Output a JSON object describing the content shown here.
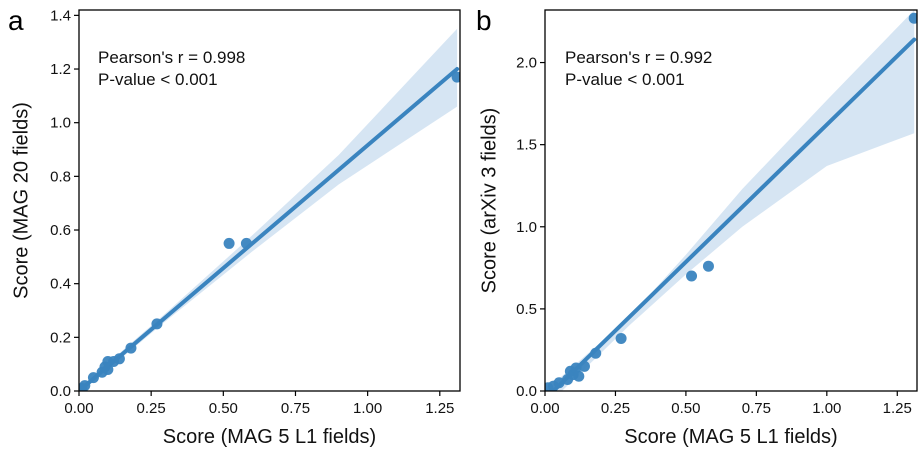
{
  "colors": {
    "line": "#3a84bf",
    "points": "#3a84bf",
    "band": "#cfe0f1",
    "axis": "#000000"
  },
  "chart_data": [
    {
      "panel_label": "a",
      "type": "scatter",
      "xlabel": "Score (MAG 5 L1 fields)",
      "ylabel": "Score (MAG 20 fields)",
      "xlim": [
        0.0,
        1.32
      ],
      "ylim": [
        0.0,
        1.42
      ],
      "xticks": [
        0.0,
        0.25,
        0.5,
        0.75,
        1.0,
        1.25
      ],
      "xtick_labels": [
        "0.00",
        "0.25",
        "0.50",
        "0.75",
        "1.00",
        "1.25"
      ],
      "yticks": [
        0.0,
        0.2,
        0.4,
        0.6,
        0.8,
        1.0,
        1.2,
        1.4
      ],
      "ytick_labels": [
        "0.0",
        "0.2",
        "0.4",
        "0.6",
        "0.8",
        "1.0",
        "1.2",
        "1.4"
      ],
      "annotation": {
        "line1": "Pearson's r = 0.998",
        "line2": "P-value < 0.001"
      },
      "points": [
        {
          "x": 0.01,
          "y": 0.01
        },
        {
          "x": 0.02,
          "y": 0.02
        },
        {
          "x": 0.05,
          "y": 0.05
        },
        {
          "x": 0.08,
          "y": 0.07
        },
        {
          "x": 0.09,
          "y": 0.09
        },
        {
          "x": 0.1,
          "y": 0.08
        },
        {
          "x": 0.1,
          "y": 0.11
        },
        {
          "x": 0.12,
          "y": 0.11
        },
        {
          "x": 0.14,
          "y": 0.12
        },
        {
          "x": 0.18,
          "y": 0.16
        },
        {
          "x": 0.27,
          "y": 0.25
        },
        {
          "x": 0.52,
          "y": 0.55
        },
        {
          "x": 0.58,
          "y": 0.55
        },
        {
          "x": 1.31,
          "y": 1.17
        }
      ],
      "regression": {
        "x": [
          0.0,
          1.31
        ],
        "y": [
          0.0,
          1.2
        ]
      },
      "ci_band": {
        "x": [
          0.0,
          0.3,
          0.6,
          0.9,
          1.31
        ],
        "upper": [
          0.01,
          0.29,
          0.58,
          0.88,
          1.35
        ],
        "lower": [
          -0.01,
          0.26,
          0.52,
          0.77,
          1.06
        ]
      }
    },
    {
      "panel_label": "b",
      "type": "scatter",
      "xlabel": "Score (MAG 5 L1 fields)",
      "ylabel": "Score (arXiv 3 fields)",
      "xlim": [
        0.0,
        1.32
      ],
      "ylim": [
        0.0,
        2.32
      ],
      "xticks": [
        0.0,
        0.25,
        0.5,
        0.75,
        1.0,
        1.25
      ],
      "xtick_labels": [
        "0.00",
        "0.25",
        "0.50",
        "0.75",
        "1.00",
        "1.25"
      ],
      "yticks": [
        0.0,
        0.5,
        1.0,
        1.5,
        2.0
      ],
      "ytick_labels": [
        "0.0",
        "0.5",
        "1.0",
        "1.5",
        "2.0"
      ],
      "annotation": {
        "line1": "Pearson's r = 0.992",
        "line2": "P-value < 0.001"
      },
      "points": [
        {
          "x": 0.01,
          "y": 0.02
        },
        {
          "x": 0.03,
          "y": 0.03
        },
        {
          "x": 0.05,
          "y": 0.05
        },
        {
          "x": 0.08,
          "y": 0.07
        },
        {
          "x": 0.09,
          "y": 0.12
        },
        {
          "x": 0.1,
          "y": 0.1
        },
        {
          "x": 0.11,
          "y": 0.14
        },
        {
          "x": 0.12,
          "y": 0.09
        },
        {
          "x": 0.14,
          "y": 0.15
        },
        {
          "x": 0.18,
          "y": 0.23
        },
        {
          "x": 0.27,
          "y": 0.32
        },
        {
          "x": 0.52,
          "y": 0.7
        },
        {
          "x": 0.58,
          "y": 0.76
        },
        {
          "x": 1.31,
          "y": 2.27
        }
      ],
      "regression": {
        "x": [
          0.0,
          1.31
        ],
        "y": [
          -0.05,
          2.14
        ]
      },
      "ci_band": {
        "x": [
          0.0,
          0.3,
          0.5,
          0.7,
          1.0,
          1.31
        ],
        "upper": [
          0.0,
          0.45,
          0.83,
          1.23,
          1.77,
          2.32
        ],
        "lower": [
          -0.1,
          0.4,
          0.71,
          1.0,
          1.37,
          1.57
        ]
      }
    }
  ]
}
